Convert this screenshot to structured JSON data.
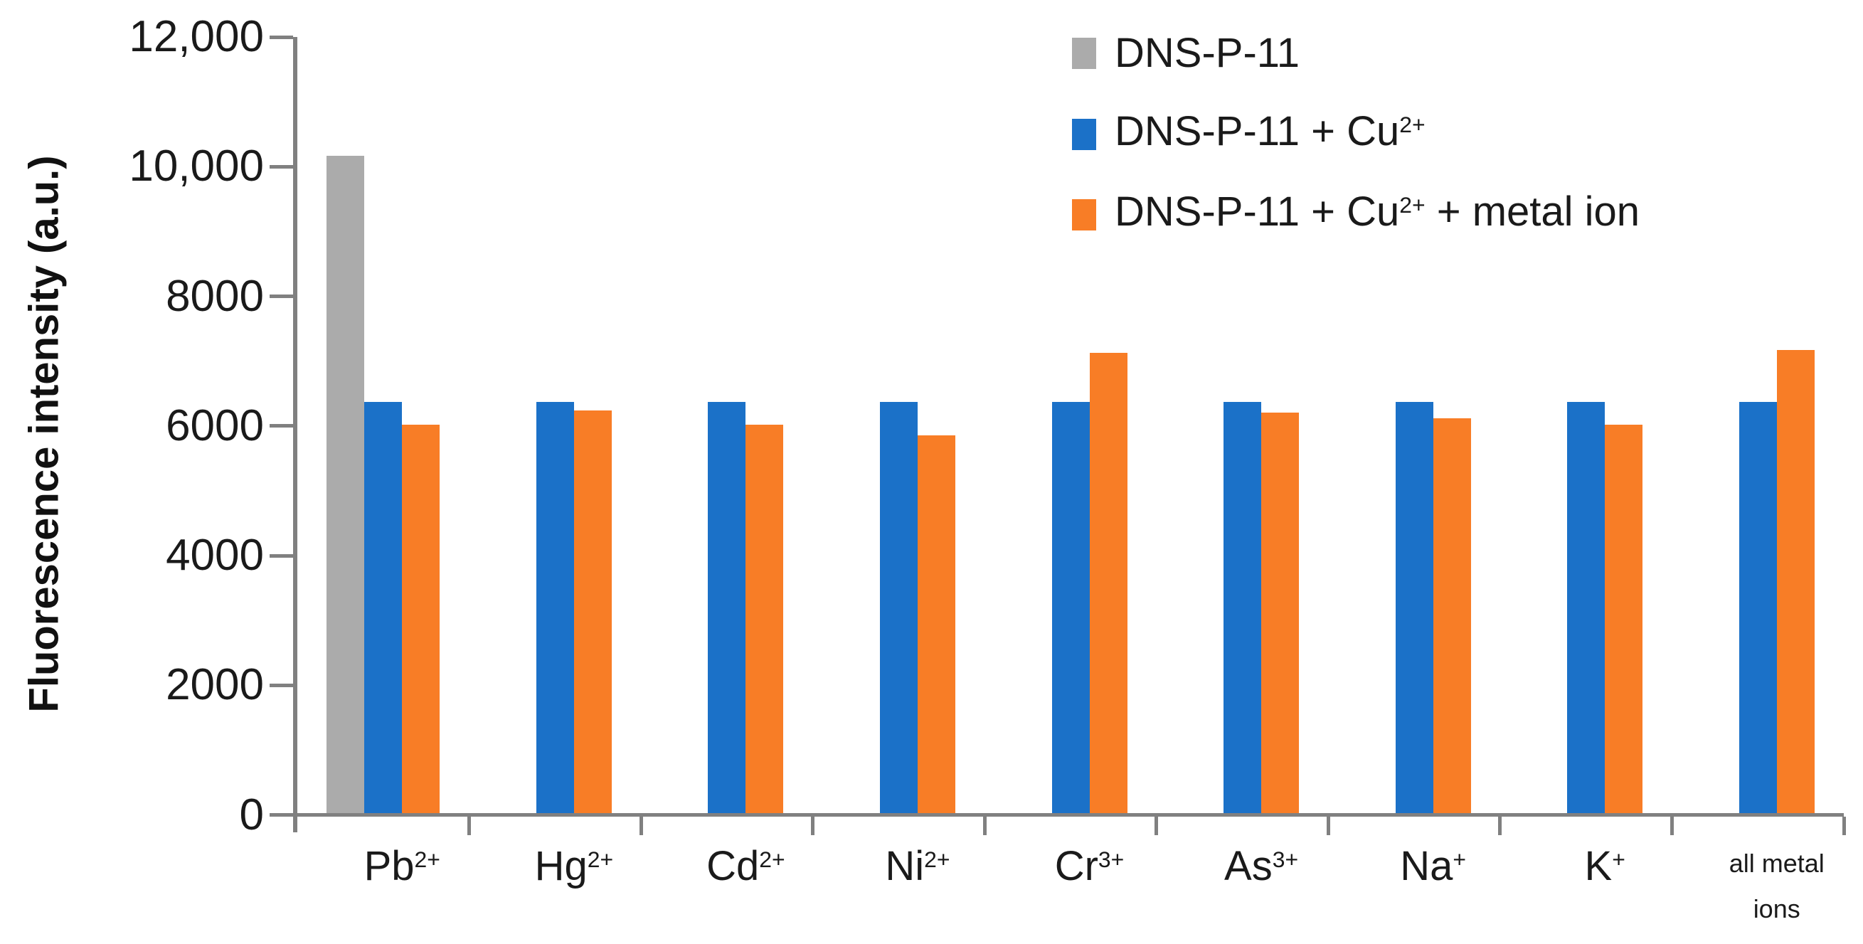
{
  "chart_data": {
    "type": "bar",
    "title": "",
    "ylabel": "Fluorescence intensity (a.u.)",
    "xlabel": "",
    "ylim": [
      0,
      12000
    ],
    "grid": false,
    "axis_color": "#808080",
    "text_color": "#1a1a1a",
    "yticks": [
      {
        "value": 0,
        "label": "0"
      },
      {
        "value": 2000,
        "label": "2000"
      },
      {
        "value": 4000,
        "label": "4000"
      },
      {
        "value": 6000,
        "label": "6000"
      },
      {
        "value": 8000,
        "label": "8000"
      },
      {
        "value": 10000,
        "label": "10,000"
      },
      {
        "value": 12000,
        "label": "12,000"
      }
    ],
    "categories": [
      {
        "text": "Pb",
        "sup": "2+"
      },
      {
        "text": "Hg",
        "sup": "2+"
      },
      {
        "text": "Cd",
        "sup": "2+"
      },
      {
        "text": "Ni",
        "sup": "2+"
      },
      {
        "text": "Cr",
        "sup": "3+"
      },
      {
        "text": "As",
        "sup": "3+"
      },
      {
        "text": "Na",
        "sup": "+"
      },
      {
        "text": "K",
        "sup": "+"
      },
      {
        "lines": [
          "all metal",
          "ions"
        ],
        "small": true
      }
    ],
    "series": [
      {
        "name": "DNS-P-11",
        "color": "#ababab",
        "values": [
          10200,
          null,
          null,
          null,
          null,
          null,
          null,
          null,
          null
        ]
      },
      {
        "name": "DNS-P-11 + Cu2+",
        "color": "#1b71c8",
        "values": [
          6400,
          6400,
          6400,
          6400,
          6400,
          6400,
          6400,
          6400,
          6400
        ]
      },
      {
        "name": "DNS-P-11 + Cu2+ + metal ion",
        "color": "#f87d26",
        "values": [
          6050,
          6270,
          6050,
          5880,
          7150,
          6230,
          6150,
          6050,
          7200
        ]
      }
    ],
    "legend": {
      "position": "top-right",
      "items": [
        {
          "color": "#ababab",
          "segments": [
            {
              "text": "DNS-P-11"
            }
          ]
        },
        {
          "color": "#1b71c8",
          "segments": [
            {
              "text": "DNS-P-11 + Cu"
            },
            {
              "sup": "2+"
            }
          ]
        },
        {
          "color": "#f87d26",
          "segments": [
            {
              "text": "DNS-P-11 + Cu"
            },
            {
              "sup": "2+"
            },
            {
              "text": " + metal ion"
            }
          ]
        }
      ]
    }
  }
}
